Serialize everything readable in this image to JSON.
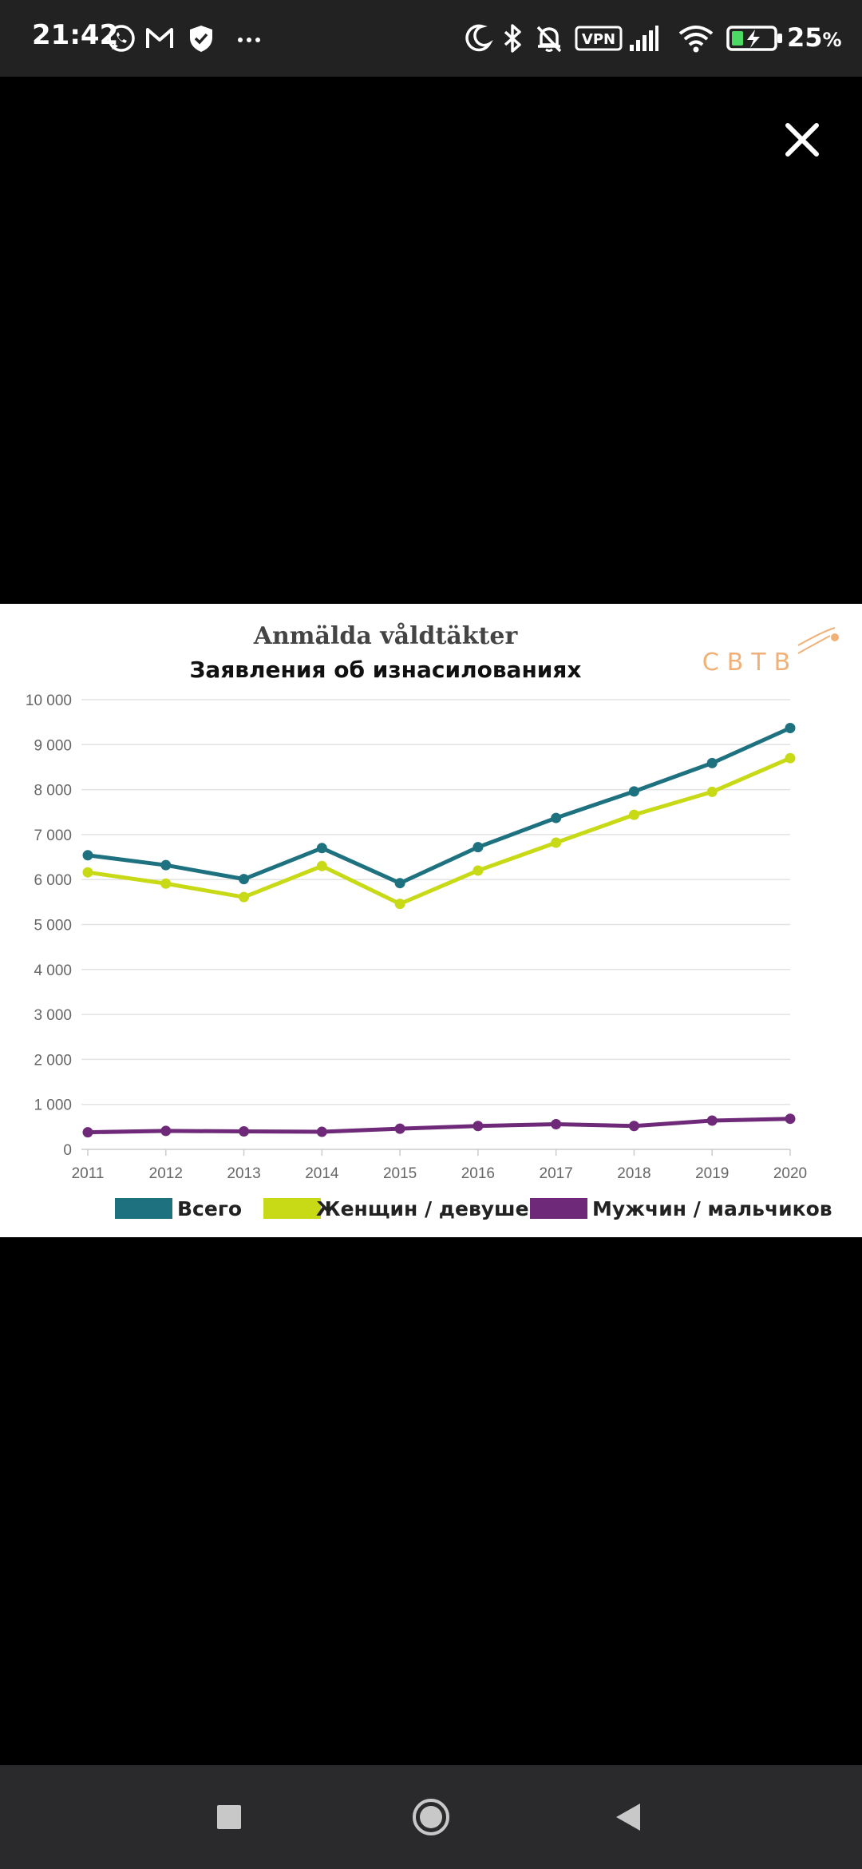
{
  "status_bar": {
    "time": "21:42",
    "battery_percent": "25",
    "battery_suffix": "%",
    "left_icons": [
      "whatsapp-icon",
      "gmail-icon",
      "shield-icon",
      "more-dots-icon"
    ],
    "right_icons": [
      "moon-icon",
      "bluetooth-icon",
      "bell-off-icon",
      "vpn-icon",
      "signal-icon",
      "wifi-icon",
      "battery-charging-icon"
    ],
    "vpn_label": "VPN"
  },
  "viewer": {
    "close_icon": "close-icon"
  },
  "logo": {
    "text": "СВТВ"
  },
  "colors": {
    "total": "#1e7280",
    "women": "#c8d916",
    "men": "#6e2a78",
    "grid": "#e3e3e3",
    "tick_text": "#666666"
  },
  "chart_data": {
    "type": "line",
    "title": "Anmälda våldtäkter",
    "subtitle": "Заявления об изнасилованиях",
    "x": [
      "2011",
      "2012",
      "2013",
      "2014",
      "2015",
      "2016",
      "2017",
      "2018",
      "2019",
      "2020"
    ],
    "ylim": [
      0,
      10000
    ],
    "yticks": [
      0,
      1000,
      2000,
      3000,
      4000,
      5000,
      6000,
      7000,
      8000,
      9000,
      10000
    ],
    "ytick_labels": [
      "0",
      "1 000",
      "2 000",
      "3 000",
      "4 000",
      "5 000",
      "6 000",
      "7 000",
      "8 000",
      "9 000",
      "10 000"
    ],
    "grid": true,
    "legend_position": "bottom",
    "series": [
      {
        "name": "Всего",
        "key": "total",
        "values": [
          6540,
          6320,
          6010,
          6700,
          5920,
          6720,
          7370,
          7960,
          8590,
          9370
        ]
      },
      {
        "name": "Женщин / девушек",
        "key": "women",
        "values": [
          6160,
          5910,
          5610,
          6300,
          5460,
          6200,
          6820,
          7440,
          7950,
          8700
        ]
      },
      {
        "name": "Мужчин / мальчиков",
        "key": "men",
        "values": [
          380,
          410,
          400,
          390,
          460,
          520,
          560,
          520,
          640,
          680
        ]
      }
    ]
  },
  "nav_bar": {
    "buttons": [
      "recents-square-icon",
      "home-circle-icon",
      "back-triangle-icon"
    ]
  }
}
